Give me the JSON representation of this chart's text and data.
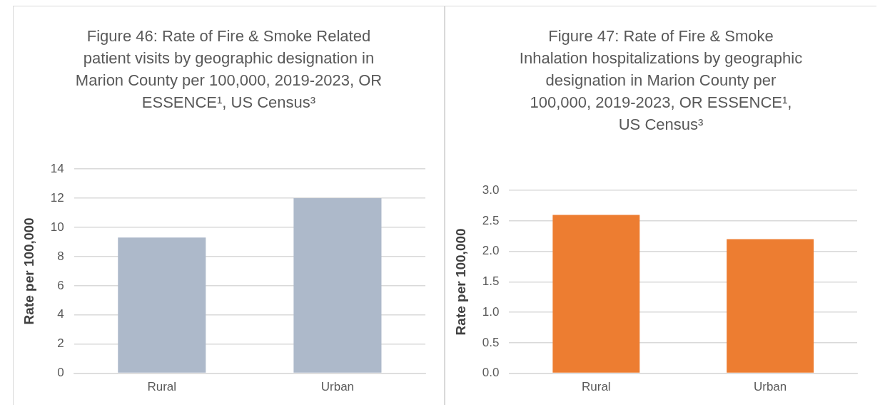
{
  "chart_data": [
    {
      "type": "bar",
      "title": "Figure 46: Rate of Fire & Smoke Related patient visits by geographic designation in Marion County per 100,000, 2019-2023, OR ESSENCE¹, US Census³",
      "ylabel": "Rate per 100,000",
      "categories": [
        "Rural",
        "Urban"
      ],
      "values": [
        9.3,
        12.0
      ],
      "color": "#adb9ca",
      "ylim": [
        0,
        14
      ],
      "yticks": [
        0,
        2,
        4,
        6,
        8,
        10,
        12,
        14
      ],
      "grid": "y",
      "legend": false
    },
    {
      "type": "bar",
      "title": "Figure 47: Rate of Fire & Smoke Inhalation hospitalizations by geographic designation in Marion County per 100,000, 2019-2023, OR ESSENCE¹, US Census³",
      "ylabel": "Rate per 100,000",
      "categories": [
        "Rural",
        "Urban"
      ],
      "values": [
        2.6,
        2.2
      ],
      "color": "#ed7d31",
      "ylim": [
        0,
        3.0
      ],
      "yticks": [
        {
          "value": 0,
          "label": "0.0"
        },
        {
          "value": 0.5,
          "label": "0.5"
        },
        {
          "value": 1,
          "label": "1.0"
        },
        {
          "value": 1.5,
          "label": "1.5"
        },
        {
          "value": 2,
          "label": "2.0"
        },
        {
          "value": 2.5,
          "label": "2.5"
        },
        {
          "value": 3,
          "label": "3.0"
        }
      ],
      "grid": "y",
      "legend": false
    }
  ]
}
